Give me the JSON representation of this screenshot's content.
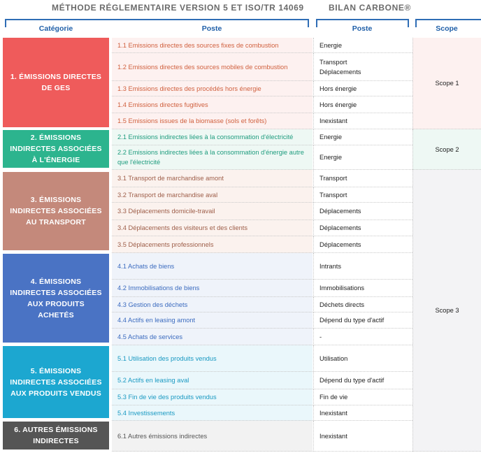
{
  "header": {
    "left_title": "MÉTHODE RÉGLEMENTAIRE VERSION 5 ET ISO/TR 14069",
    "right_title": "BILAN CARBONE®"
  },
  "columns": [
    "Catégorie",
    "Poste",
    "Poste",
    "Scope"
  ],
  "groups": [
    {
      "category": "1. ÉMISSIONS DIRECTES DE GES",
      "rows": [
        {
          "poste": "1.1 Emissions directes des sources fixes de combustion",
          "bilan": [
            "Energie"
          ]
        },
        {
          "poste": "1.2 Emissions directes des sources mobiles de combustion",
          "bilan": [
            "Transport",
            "Déplacements"
          ]
        },
        {
          "poste": "1.3 Emissions directes des procédés hors énergie",
          "bilan": [
            "Hors énergie"
          ]
        },
        {
          "poste": "1.4 Emissions directes fugitives",
          "bilan": [
            "Hors énergie"
          ]
        },
        {
          "poste": "1.5 Emissions issues de la biomasse (sols et forêts)",
          "bilan": [
            "Inexistant"
          ]
        }
      ]
    },
    {
      "category": "2. ÉMISSIONS INDIRECTES ASSOCIÉES À L'ÉNERGIE",
      "rows": [
        {
          "poste": "2.1 Emissions indirectes liées à la consommation d'électricité",
          "bilan": [
            "Energie"
          ]
        },
        {
          "poste": "2.2 Emissions indirectes liées à la consommation d'énergie autre que l'électricité",
          "bilan": [
            "Energie"
          ]
        }
      ]
    },
    {
      "category": "3. ÉMISSIONS INDIRECTES ASSOCIÉES AU TRANSPORT",
      "rows": [
        {
          "poste": "3.1 Transport de marchandise amont",
          "bilan": [
            "Transport"
          ]
        },
        {
          "poste": "3.2 Transport de marchandise aval",
          "bilan": [
            "Transport"
          ]
        },
        {
          "poste": "3.3 Déplacements domicile-travail",
          "bilan": [
            "Déplacements"
          ]
        },
        {
          "poste": "3.4 Déplacements des visiteurs et des clients",
          "bilan": [
            "Déplacements"
          ]
        },
        {
          "poste": "3.5 Déplacements professionnels",
          "bilan": [
            "Déplacements"
          ]
        }
      ]
    },
    {
      "category": "4. ÉMISSIONS INDIRECTES ASSOCIÉES AUX PRODUITS ACHETÉS",
      "rows": [
        {
          "poste": "4.1 Achats de biens",
          "bilan": [
            "Intrants"
          ]
        },
        {
          "poste": "4.2 Immobilisations de biens",
          "bilan": [
            "Immobilisations"
          ]
        },
        {
          "poste": "4.3 Gestion des déchets",
          "bilan": [
            "Déchets directs"
          ]
        },
        {
          "poste": "4.4 Actifs en leasing amont",
          "bilan": [
            "Dépend du type d'actif"
          ]
        },
        {
          "poste": "4.5 Achats de services",
          "bilan": [
            "-"
          ]
        }
      ]
    },
    {
      "category": "5. ÉMISSIONS INDIRECTES ASSOCIÉES AUX PRODUITS VENDUS",
      "rows": [
        {
          "poste": "5.1 Utilisation des produits vendus",
          "bilan": [
            "Utilisation"
          ]
        },
        {
          "poste": "5.2 Actifs en leasing aval",
          "bilan": [
            "Dépend du type d'actif"
          ]
        },
        {
          "poste": "5.3 Fin de vie des produits vendus",
          "bilan": [
            "Fin de vie"
          ]
        },
        {
          "poste": "5.4 Investissements",
          "bilan": [
            "Inexistant"
          ]
        }
      ]
    },
    {
      "category": "6. AUTRES ÉMISSIONS INDIRECTES",
      "rows": [
        {
          "poste": "6.1 Autres émissions indirectes",
          "bilan": [
            "Inexistant"
          ]
        }
      ]
    }
  ],
  "scopes": [
    "Scope 1",
    "Scope 2",
    "Scope 3"
  ]
}
